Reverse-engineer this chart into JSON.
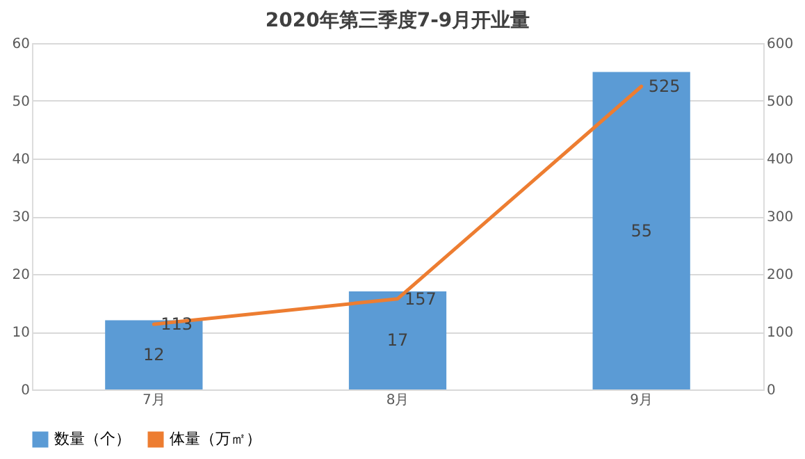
{
  "chart_data": {
    "type": "bar",
    "title": "2020年第三季度7-9月开业量",
    "categories": [
      "7月",
      "8月",
      "9月"
    ],
    "series": [
      {
        "name": "数量（个）",
        "color": "#5b9bd5",
        "values": [
          12,
          17,
          55
        ]
      },
      {
        "name": "体量（万㎡）",
        "type": "line",
        "axis": "y2",
        "color": "#ed7d31",
        "values": [
          113,
          157,
          525
        ]
      }
    ],
    "ylim": [
      0,
      60
    ],
    "yticks": [
      0,
      10,
      20,
      30,
      40,
      50,
      60
    ],
    "y2lim": [
      0,
      600
    ],
    "y2ticks": [
      0,
      100,
      200,
      300,
      400,
      500,
      600
    ],
    "grid": "y",
    "legend": "bottom",
    "data_labels": true
  }
}
